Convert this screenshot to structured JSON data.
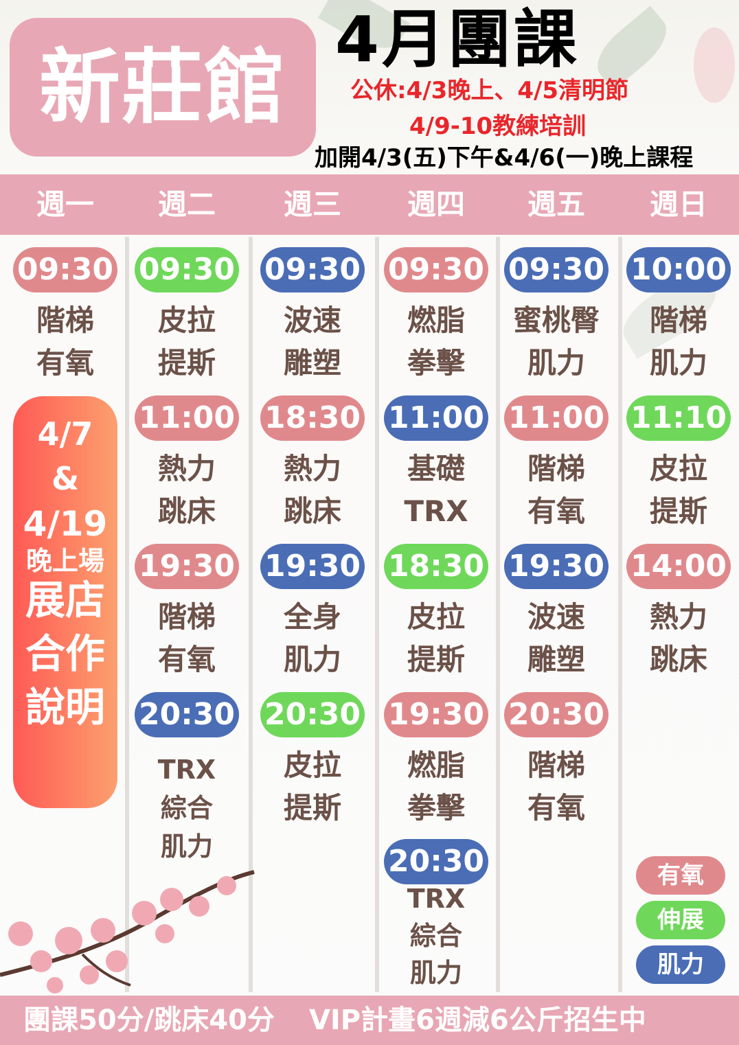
{
  "header": {
    "venue": "新莊館",
    "title": "4月團課",
    "notice_holiday": "公休:4/3晚上、4/5清明節",
    "notice_training": "4/9-10教練培訓",
    "notice_extra": "加開4/3(五)下午&4/6(一)晚上課程"
  },
  "colors": {
    "aerobic": "#e0898c",
    "stretch": "#6fd85a",
    "strength": "#4a6db5",
    "band": "#e8a7b4",
    "text": "#6b5148"
  },
  "days": [
    "週一",
    "週二",
    "週三",
    "週四",
    "週五",
    "週日"
  ],
  "columns": [
    {
      "classes": [
        {
          "time": "09:30",
          "type": "aerobic",
          "name": [
            "階梯",
            "有氧"
          ]
        }
      ]
    },
    {
      "classes": [
        {
          "time": "09:30",
          "type": "stretch",
          "name": [
            "皮拉",
            "提斯"
          ]
        },
        {
          "time": "11:00",
          "type": "aerobic",
          "name": [
            "熱力",
            "跳床"
          ]
        },
        {
          "time": "19:30",
          "type": "aerobic",
          "name": [
            "階梯",
            "有氧"
          ]
        },
        {
          "time": "20:30",
          "type": "strength",
          "name": [
            "TRX",
            "綜合",
            "肌力"
          ]
        }
      ]
    },
    {
      "classes": [
        {
          "time": "09:30",
          "type": "strength",
          "name": [
            "波速",
            "雕塑"
          ]
        },
        {
          "time": "18:30",
          "type": "aerobic",
          "name": [
            "熱力",
            "跳床"
          ]
        },
        {
          "time": "19:30",
          "type": "strength",
          "name": [
            "全身",
            "肌力"
          ]
        },
        {
          "time": "20:30",
          "type": "stretch",
          "name": [
            "皮拉",
            "提斯"
          ]
        }
      ]
    },
    {
      "classes": [
        {
          "time": "09:30",
          "type": "aerobic",
          "name": [
            "燃脂",
            "拳擊"
          ]
        },
        {
          "time": "11:00",
          "type": "strength",
          "name": [
            "基礎",
            "TRX"
          ]
        },
        {
          "time": "18:30",
          "type": "stretch",
          "name": [
            "皮拉",
            "提斯"
          ]
        },
        {
          "time": "19:30",
          "type": "aerobic",
          "name": [
            "燃脂",
            "拳擊"
          ]
        },
        {
          "time": "20:30",
          "type": "strength",
          "name": [
            "TRX",
            "綜合",
            "肌力"
          ]
        }
      ]
    },
    {
      "classes": [
        {
          "time": "09:30",
          "type": "strength",
          "name": [
            "蜜桃臀",
            "肌力"
          ]
        },
        {
          "time": "11:00",
          "type": "aerobic",
          "name": [
            "階梯",
            "有氧"
          ]
        },
        {
          "time": "19:30",
          "type": "strength",
          "name": [
            "波速",
            "雕塑"
          ]
        },
        {
          "time": "20:30",
          "type": "aerobic",
          "name": [
            "階梯",
            "有氧"
          ]
        }
      ]
    },
    {
      "classes": [
        {
          "time": "10:00",
          "type": "strength",
          "name": [
            "階梯",
            "肌力"
          ]
        },
        {
          "time": "11:10",
          "type": "stretch",
          "name": [
            "皮拉",
            "提斯"
          ]
        },
        {
          "time": "14:00",
          "type": "aerobic",
          "name": [
            "熱力",
            "跳床"
          ]
        }
      ]
    }
  ],
  "promo": {
    "dates1": "4/7",
    "amp": "&",
    "dates2": "4/19",
    "session": "晚上場",
    "line1": "展店",
    "line2": "合作",
    "line3": "說明"
  },
  "legend": [
    {
      "label": "有氧",
      "type": "aerobic"
    },
    {
      "label": "伸展",
      "type": "stretch"
    },
    {
      "label": "肌力",
      "type": "strength"
    }
  ],
  "footer": {
    "left": "團課50分/跳床40分",
    "right": "VIP計畫6週減6公斤招生中"
  }
}
